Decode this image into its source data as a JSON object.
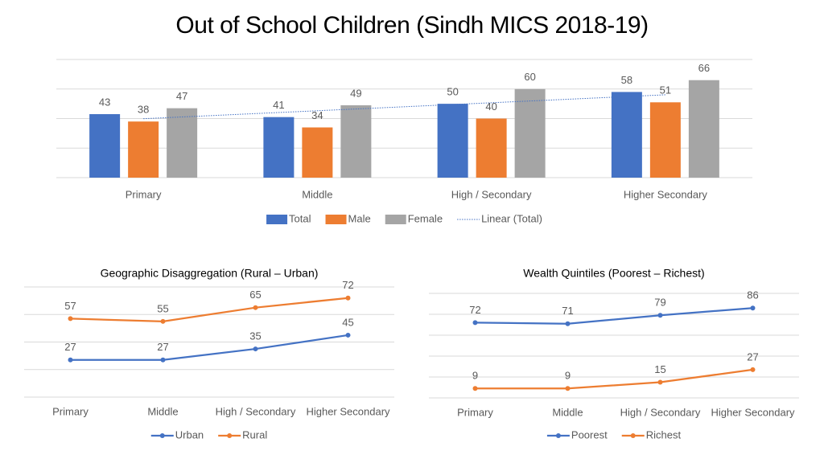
{
  "title": "Out of School Children (Sindh MICS 2018-19)",
  "chart_data": [
    {
      "type": "bar",
      "categories": [
        "Primary",
        "Middle",
        "High / Secondary",
        "Higher Secondary"
      ],
      "series": [
        {
          "name": "Total",
          "color": "#4472c4",
          "values": [
            43,
            41,
            50,
            58
          ]
        },
        {
          "name": "Male",
          "color": "#ed7d31",
          "values": [
            38,
            34,
            40,
            51
          ]
        },
        {
          "name": "Female",
          "color": "#a5a5a5",
          "values": [
            47,
            49,
            60,
            66
          ]
        }
      ],
      "trendline": {
        "name": "Linear (Total)",
        "series": 0,
        "color": "#4472c4"
      },
      "ylim": [
        0,
        80
      ],
      "yticks": [
        0,
        20,
        40,
        60,
        80
      ],
      "show_tick_labels": false,
      "grid": true,
      "legend": "bottom"
    },
    {
      "type": "line",
      "title": "Geographic Disaggregation (Rural – Urban)",
      "categories": [
        "Primary",
        "Middle",
        "High / Secondary",
        "Higher Secondary"
      ],
      "series": [
        {
          "name": "Urban",
          "color": "#4472c4",
          "values": [
            27,
            27,
            35,
            45
          ]
        },
        {
          "name": "Rural",
          "color": "#ed7d31",
          "values": [
            57,
            55,
            65,
            72
          ]
        }
      ],
      "ylim": [
        0,
        80
      ],
      "yticks": [
        0,
        20,
        40,
        60,
        80
      ],
      "show_tick_labels": false,
      "grid": true,
      "legend": "bottom"
    },
    {
      "type": "line",
      "title": "Wealth Quintiles (Poorest – Richest)",
      "categories": [
        "Primary",
        "Middle",
        "High / Secondary",
        "Higher Secondary"
      ],
      "series": [
        {
          "name": "Poorest",
          "color": "#4472c4",
          "values": [
            72,
            71,
            79,
            86
          ]
        },
        {
          "name": "Richest",
          "color": "#ed7d31",
          "values": [
            9,
            9,
            15,
            27
          ]
        }
      ],
      "ylim": [
        0,
        100
      ],
      "yticks": [
        0,
        20,
        40,
        60,
        80,
        100
      ],
      "show_tick_labels": false,
      "grid": true,
      "legend": "bottom"
    }
  ]
}
